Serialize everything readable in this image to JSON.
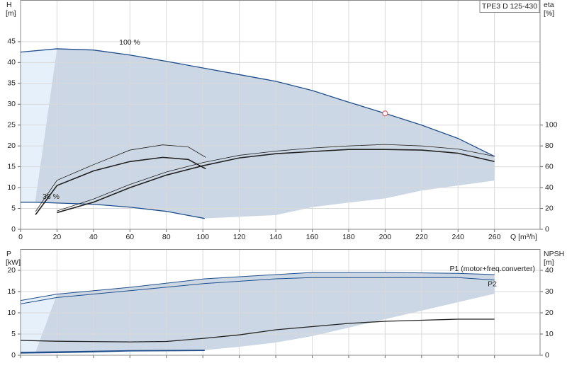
{
  "chart_data": [
    {
      "type": "line",
      "title": "TPE3 D 125-430",
      "xlabel": "Q [m³/h]",
      "ylabel": "H",
      "yunit": "[m]",
      "y2label": "eta",
      "y2unit": "[%]",
      "xlim": [
        0,
        285
      ],
      "xticks": [
        0,
        20,
        40,
        60,
        80,
        100,
        120,
        140,
        160,
        180,
        200,
        220,
        240,
        260
      ],
      "ylim": [
        0,
        55
      ],
      "yticks": [
        0,
        5,
        10,
        15,
        20,
        25,
        30,
        35,
        40,
        45
      ],
      "y2lim": [
        0,
        220
      ],
      "y2ticks": [
        0,
        20,
        40,
        60,
        80,
        100
      ],
      "grid": true,
      "area": {
        "color": "#cbd7e4",
        "x": [
          20,
          40,
          60,
          80,
          100,
          120,
          140,
          160,
          180,
          200,
          220,
          240,
          260,
          260,
          240,
          220,
          200,
          180,
          160,
          140,
          101,
          80,
          60,
          40,
          20,
          8
        ],
        "values": [
          43.3,
          43,
          41.8,
          40.3,
          38.7,
          37.1,
          35.5,
          33.3,
          30.5,
          27.8,
          25,
          21.8,
          17.5,
          11.7,
          10.5,
          9.3,
          7.4,
          6.4,
          5.3,
          3.4,
          2.6,
          4.3,
          5.3,
          6,
          6.3,
          6.5
        ]
      },
      "extended_area": {
        "color": "#e6f0fa",
        "x": [
          0,
          20,
          8,
          0
        ],
        "values": [
          42.5,
          43.3,
          6.5,
          6.5
        ]
      },
      "marker": {
        "x": 200,
        "y": 27.8,
        "color": "#e06060"
      },
      "series": [
        {
          "name": "100 %",
          "color": "#1f4e8c",
          "width": 1.3,
          "x": [
            0,
            20,
            40,
            60,
            80,
            100,
            120,
            140,
            160,
            180,
            200,
            220,
            240,
            260
          ],
          "values": [
            42.5,
            43.3,
            43,
            41.8,
            40.3,
            38.7,
            37.1,
            35.5,
            33.3,
            30.5,
            27.8,
            25,
            21.8,
            17.5
          ]
        },
        {
          "name": "38 %",
          "color": "#1f4e8c",
          "width": 1.3,
          "x": [
            0,
            8,
            20,
            40,
            60,
            80,
            101
          ],
          "values": [
            6.5,
            6.5,
            6.3,
            6,
            5.3,
            4.3,
            2.6
          ]
        },
        {
          "color": "#222222",
          "width": 0.8,
          "axis": "y2",
          "x": [
            20,
            40,
            60,
            80,
            100,
            120,
            140,
            160,
            180,
            200,
            220,
            240,
            260
          ],
          "values": [
            17.6,
            29,
            43,
            55,
            64,
            71,
            75,
            78,
            80,
            81.4,
            80,
            77,
            70
          ]
        },
        {
          "color": "#222222",
          "width": 1.6,
          "axis": "y2",
          "x": [
            20,
            40,
            60,
            80,
            100,
            120,
            140,
            160,
            180,
            200,
            220,
            240,
            260
          ],
          "values": [
            16,
            26,
            40,
            52,
            61,
            68.5,
            72.5,
            74.6,
            76.6,
            76.6,
            76,
            73,
            65
          ]
        },
        {
          "color": "#222222",
          "width": 0.8,
          "axis": "y2",
          "x": [
            8.2,
            20,
            40,
            60,
            78,
            92,
            101.6
          ],
          "values": [
            17,
            47,
            62,
            76,
            81,
            79,
            69
          ]
        },
        {
          "color": "#222222",
          "width": 1.6,
          "axis": "y2",
          "x": [
            8.2,
            20,
            40,
            60,
            78,
            92,
            101.6
          ],
          "values": [
            14,
            42,
            56,
            65,
            69,
            67,
            58
          ]
        }
      ]
    },
    {
      "type": "line",
      "ylabel": "P",
      "yunit": "[kW]",
      "y2label": "NPSH",
      "y2unit": "[m]",
      "xlim": [
        0,
        285
      ],
      "xticks": [
        0,
        20,
        40,
        60,
        80,
        100,
        120,
        140,
        160,
        180,
        200,
        220,
        240,
        260
      ],
      "ylim": [
        0,
        25
      ],
      "yticks": [
        0,
        5,
        10,
        15,
        20
      ],
      "y2lim": [
        0,
        50
      ],
      "y2ticks": [
        0,
        10,
        20,
        30,
        40
      ],
      "grid": true,
      "area": {
        "color": "#cbd7e4",
        "x": [
          20,
          60,
          101,
          140,
          160,
          200,
          240,
          260,
          260,
          240,
          220,
          200,
          180,
          160,
          140,
          120,
          101,
          80,
          40,
          20,
          8
        ],
        "values": [
          14.4,
          16,
          18,
          19,
          19.5,
          19.5,
          19.3,
          19,
          14.5,
          12.5,
          10.5,
          8.5,
          6.5,
          4.5,
          3,
          2,
          1.2,
          1.2,
          0.8,
          0.6,
          0.5
        ]
      },
      "extended_area": {
        "color": "#e6f0fa",
        "x": [
          0,
          20,
          8,
          0
        ],
        "values": [
          12.9,
          14.4,
          0.5,
          0.5
        ]
      },
      "series": [
        {
          "name": "P1 (motor+freq.converter)",
          "color": "#1f4e8c",
          "width": 1,
          "x": [
            0,
            20,
            60,
            101,
            140,
            160,
            200,
            240,
            260
          ],
          "values": [
            12.9,
            14.4,
            16,
            18,
            19,
            19.5,
            19.5,
            19.3,
            19
          ]
        },
        {
          "name": "P2",
          "color": "#1f4e8c",
          "width": 1,
          "x": [
            0,
            20,
            60,
            101,
            140,
            160,
            200,
            240,
            260
          ],
          "values": [
            12.1,
            13.6,
            15.2,
            16.9,
            18,
            18.3,
            18.3,
            18.3,
            17.7
          ]
        },
        {
          "color": "#1f4e8c",
          "width": 1.3,
          "x": [
            0,
            20,
            60,
            101
          ],
          "values": [
            0.7,
            0.8,
            1.1,
            1.2
          ]
        },
        {
          "color": "#1f4e8c",
          "width": 1.3,
          "x": [
            0,
            20,
            60,
            101
          ],
          "values": [
            0.5,
            0.6,
            1,
            1.1
          ]
        },
        {
          "color": "#222222",
          "width": 1.3,
          "axis": "y2",
          "x": [
            0,
            20,
            60,
            80,
            101,
            120,
            140,
            160,
            180,
            200,
            220,
            240,
            260
          ],
          "values": [
            7,
            6.6,
            6.3,
            6.5,
            8,
            9.6,
            12,
            13.5,
            15,
            16,
            16.5,
            17,
            17
          ]
        }
      ]
    }
  ]
}
